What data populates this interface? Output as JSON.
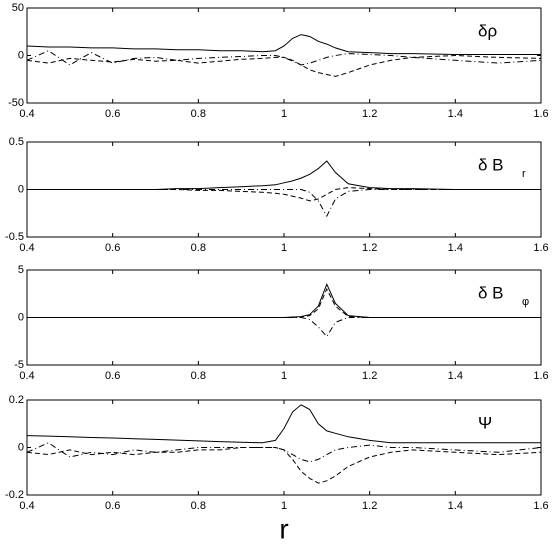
{
  "chart_data": [
    {
      "type": "line",
      "label": "δρ",
      "x": [
        0.4,
        0.45,
        0.5,
        0.55,
        0.6,
        0.65,
        0.7,
        0.75,
        0.8,
        0.85,
        0.9,
        0.95,
        0.98,
        1.0,
        1.02,
        1.04,
        1.06,
        1.08,
        1.1,
        1.12,
        1.15,
        1.2,
        1.25,
        1.3,
        1.4,
        1.5,
        1.6
      ],
      "xlim": [
        0.4,
        1.6
      ],
      "xticks": [
        0.4,
        0.6,
        0.8,
        1,
        1.2,
        1.4,
        1.6
      ],
      "ylim": [
        -50,
        50
      ],
      "yticks": [
        -50,
        0,
        50
      ],
      "series": [
        {
          "style": "solid",
          "color": "#000",
          "values": [
            10,
            9,
            9,
            8,
            8,
            7,
            7,
            6,
            6,
            5,
            5,
            4,
            5,
            10,
            18,
            22,
            20,
            15,
            12,
            8,
            4,
            3,
            2,
            2,
            1,
            1,
            1
          ]
        },
        {
          "style": "dashed",
          "color": "#000",
          "values": [
            -5,
            -8,
            -3,
            -5,
            -7,
            -4,
            -6,
            -5,
            -8,
            -6,
            -4,
            -3,
            -2,
            -2,
            -5,
            -10,
            -15,
            -18,
            -20,
            -22,
            -18,
            -10,
            -5,
            -2,
            0,
            -2,
            -3
          ]
        },
        {
          "style": "dashdot",
          "color": "#000",
          "values": [
            -5,
            5,
            -10,
            3,
            -8,
            -3,
            -2,
            -5,
            -3,
            -2,
            -1,
            0,
            0,
            -2,
            -6,
            -10,
            -8,
            -5,
            -2,
            0,
            2,
            1,
            0,
            -2,
            -5,
            -8,
            -5
          ]
        }
      ]
    },
    {
      "type": "line",
      "label": "δ B",
      "label_sub": "r",
      "x": [
        0.4,
        0.45,
        0.5,
        0.55,
        0.6,
        0.65,
        0.7,
        0.75,
        0.8,
        0.85,
        0.9,
        0.95,
        0.98,
        1.0,
        1.02,
        1.04,
        1.06,
        1.08,
        1.1,
        1.12,
        1.15,
        1.2,
        1.25,
        1.3,
        1.4,
        1.5,
        1.6
      ],
      "xlim": [
        0.4,
        1.6
      ],
      "xticks": [
        0.4,
        0.6,
        0.8,
        1,
        1.2,
        1.4,
        1.6
      ],
      "ylim": [
        -0.5,
        0.5
      ],
      "yticks": [
        -0.5,
        0,
        0.5
      ],
      "series": [
        {
          "style": "solid",
          "color": "#000",
          "values": [
            0,
            0,
            0,
            0,
            0,
            0,
            0,
            0.01,
            0.01,
            0.02,
            0.03,
            0.04,
            0.05,
            0.07,
            0.09,
            0.12,
            0.16,
            0.22,
            0.3,
            0.18,
            0.06,
            0.02,
            0.01,
            0.01,
            0,
            0,
            0
          ]
        },
        {
          "style": "dashed",
          "color": "#000",
          "values": [
            0,
            0,
            0,
            0,
            0,
            0,
            0,
            0,
            -0.01,
            -0.01,
            -0.02,
            -0.03,
            -0.04,
            -0.05,
            -0.07,
            -0.09,
            -0.12,
            -0.1,
            -0.05,
            0,
            0.02,
            0.01,
            0,
            0,
            0,
            0,
            0
          ]
        },
        {
          "style": "dashdot",
          "color": "#000",
          "values": [
            0,
            0,
            0,
            0,
            0,
            0,
            0,
            0,
            0,
            0,
            0,
            0,
            0,
            0,
            0,
            0,
            -0.03,
            -0.12,
            -0.28,
            -0.1,
            -0.02,
            0,
            0,
            0,
            0,
            0,
            0
          ]
        }
      ]
    },
    {
      "type": "line",
      "label": "δ B",
      "label_sub": "φ",
      "x": [
        0.4,
        0.45,
        0.5,
        0.55,
        0.6,
        0.65,
        0.7,
        0.75,
        0.8,
        0.85,
        0.9,
        0.95,
        0.98,
        1.0,
        1.02,
        1.04,
        1.06,
        1.08,
        1.1,
        1.12,
        1.15,
        1.2,
        1.25,
        1.3,
        1.4,
        1.5,
        1.6
      ],
      "xlim": [
        0.4,
        1.6
      ],
      "xticks": [
        0.4,
        0.6,
        0.8,
        1,
        1.2,
        1.4,
        1.6
      ],
      "ylim": [
        -5,
        5
      ],
      "yticks": [
        -5,
        0,
        5
      ],
      "series": [
        {
          "style": "solid",
          "color": "#000",
          "values": [
            0,
            0,
            0,
            0,
            0,
            0,
            0,
            0,
            0,
            0,
            0,
            0,
            0,
            0,
            0.05,
            0.1,
            0.3,
            1.2,
            3.5,
            1.5,
            0.2,
            0,
            0,
            0,
            0,
            0,
            0
          ]
        },
        {
          "style": "dashed",
          "color": "#000",
          "values": [
            0,
            0,
            0,
            0,
            0,
            0,
            0,
            0,
            0,
            0,
            0,
            0,
            0,
            0,
            0,
            0.05,
            0.2,
            0.9,
            3,
            1.2,
            0.1,
            0,
            0,
            0,
            0,
            0,
            0
          ]
        },
        {
          "style": "dashdot",
          "color": "#000",
          "values": [
            0,
            0,
            0,
            0,
            0,
            0,
            0,
            0,
            0,
            0,
            0,
            0,
            0,
            0,
            0,
            0,
            -0.2,
            -1,
            -2,
            -0.5,
            0,
            0,
            0,
            0,
            0,
            0,
            0
          ]
        }
      ]
    },
    {
      "type": "line",
      "label": "Ψ",
      "xlabel": "r",
      "x": [
        0.4,
        0.45,
        0.5,
        0.55,
        0.6,
        0.65,
        0.7,
        0.75,
        0.8,
        0.85,
        0.9,
        0.95,
        0.98,
        1.0,
        1.02,
        1.04,
        1.06,
        1.08,
        1.1,
        1.12,
        1.15,
        1.2,
        1.25,
        1.3,
        1.4,
        1.5,
        1.6
      ],
      "xlim": [
        0.4,
        1.6
      ],
      "xticks": [
        0.4,
        0.6,
        0.8,
        1,
        1.2,
        1.4,
        1.6
      ],
      "ylim": [
        -0.2,
        0.2
      ],
      "yticks": [
        -0.2,
        0,
        0.2
      ],
      "series": [
        {
          "style": "solid",
          "color": "#000",
          "values": [
            0.05,
            0.048,
            0.045,
            0.042,
            0.04,
            0.037,
            0.034,
            0.031,
            0.028,
            0.025,
            0.022,
            0.02,
            0.03,
            0.08,
            0.15,
            0.18,
            0.16,
            0.1,
            0.07,
            0.06,
            0.045,
            0.03,
            0.02,
            0.02,
            0.02,
            0.02,
            0.02
          ]
        },
        {
          "style": "dashed",
          "color": "#000",
          "values": [
            -0.02,
            -0.03,
            -0.01,
            -0.03,
            -0.02,
            -0.03,
            -0.02,
            -0.02,
            -0.01,
            -0.01,
            0,
            0,
            0,
            -0.01,
            -0.05,
            -0.1,
            -0.13,
            -0.15,
            -0.14,
            -0.12,
            -0.08,
            -0.04,
            -0.02,
            -0.01,
            -0.02,
            -0.03,
            -0.02
          ]
        },
        {
          "style": "dashdot",
          "color": "#000",
          "values": [
            -0.02,
            0.02,
            -0.04,
            -0.02,
            -0.03,
            -0.01,
            -0.02,
            -0.01,
            0,
            0,
            0,
            0,
            0,
            -0.01,
            -0.03,
            -0.05,
            -0.06,
            -0.05,
            -0.03,
            -0.01,
            0,
            0.01,
            0,
            0,
            -0.01,
            -0.02,
            0
          ]
        }
      ]
    }
  ]
}
